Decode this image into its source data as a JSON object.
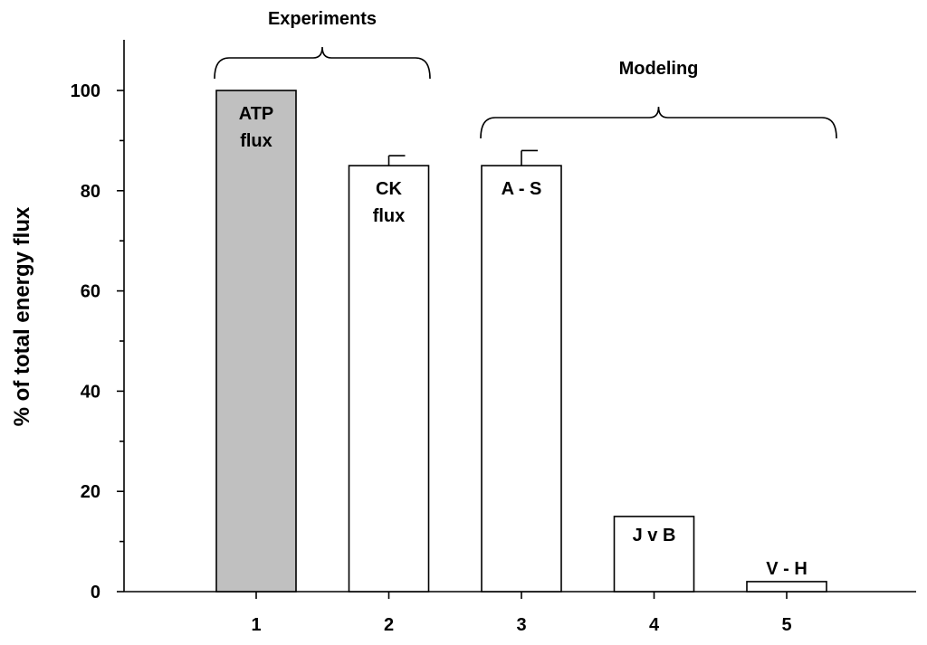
{
  "chart_data": {
    "type": "bar",
    "categories": [
      "1",
      "2",
      "3",
      "4",
      "5"
    ],
    "values": [
      100,
      85,
      85,
      15,
      2
    ],
    "errors": [
      0,
      2,
      3,
      0,
      0
    ],
    "bar_labels": [
      [
        "ATP",
        "flux"
      ],
      [
        "CK",
        "flux"
      ],
      [
        "A - S"
      ],
      [
        "J v B"
      ],
      [
        "V - H"
      ]
    ],
    "bar_colors": [
      "#c0c0c0",
      "#ffffff",
      "#ffffff",
      "#ffffff",
      "#ffffff"
    ],
    "ylabel": "% of total energy flux",
    "xlabel": "",
    "ylim": [
      0,
      100
    ],
    "yticks": [
      0,
      20,
      40,
      60,
      80,
      100
    ],
    "grid": false,
    "groups": [
      {
        "label": "Experiments",
        "from": 1,
        "to": 2
      },
      {
        "label": "Modeling",
        "from": 3,
        "to": 5
      }
    ]
  }
}
